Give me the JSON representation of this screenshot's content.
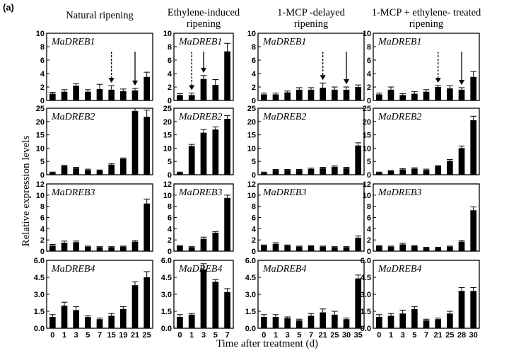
{
  "panel_label": "(a)",
  "chart_data": {
    "type": "bar",
    "ylabel": "Relative expression levels",
    "xlabel": "Time after treatment (d)",
    "columns": [
      {
        "title_lines": [
          "Natural ripening"
        ],
        "x": [
          "0",
          "1",
          "3",
          "5",
          "7",
          "15",
          "19",
          "21",
          "25"
        ]
      },
      {
        "title_lines": [
          "Ethylene-induced",
          "ripening"
        ],
        "x": [
          "0",
          "1",
          "3",
          "5",
          "7"
        ]
      },
      {
        "title_lines": [
          "1-MCP -delayed",
          "ripening"
        ],
        "x": [
          "0",
          "1",
          "3",
          "5",
          "7",
          "21",
          "25",
          "30",
          "35"
        ]
      },
      {
        "title_lines": [
          "1-MCP + ethylene- treated",
          "ripening"
        ],
        "x": [
          "0",
          "1",
          "3",
          "5",
          "7",
          "21",
          "25",
          "28",
          "30"
        ]
      }
    ],
    "rows": [
      {
        "gene": "MaDREB1",
        "ylim": [
          0,
          10
        ],
        "yticks": [
          "0",
          "2",
          "4",
          "6",
          "8",
          "10"
        ],
        "ytick_values": [
          0,
          2,
          4,
          6,
          8,
          10
        ],
        "values": [
          [
            1.0,
            1.3,
            2.2,
            1.3,
            1.7,
            1.6,
            1.4,
            1.5,
            3.5
          ],
          [
            0.8,
            0.8,
            3.2,
            2.3,
            7.3
          ],
          [
            0.9,
            0.9,
            1.2,
            1.6,
            1.6,
            1.9,
            1.6,
            1.6,
            2.0
          ],
          [
            0.9,
            1.6,
            0.8,
            1.0,
            1.3,
            2.0,
            1.8,
            1.6,
            3.5
          ]
        ],
        "errors": [
          [
            0.2,
            0.3,
            0.3,
            0.3,
            0.7,
            0.6,
            0.3,
            0.3,
            0.7
          ],
          [
            0.2,
            0.3,
            0.5,
            0.8,
            1.2
          ],
          [
            0.2,
            0.2,
            0.2,
            0.3,
            0.3,
            0.7,
            0.4,
            0.4,
            0.3
          ],
          [
            0.2,
            0.4,
            0.2,
            0.3,
            0.3,
            0.2,
            0.4,
            0.3,
            0.8
          ]
        ],
        "arrows": [
          [
            {
              "index": 5,
              "style": "dashed"
            },
            {
              "index": 7,
              "style": "solid"
            }
          ],
          [
            {
              "index": 1,
              "style": "dashed"
            },
            {
              "index": 2,
              "style": "solid"
            }
          ],
          [
            {
              "index": 5,
              "style": "dashed"
            },
            {
              "index": 7,
              "style": "solid"
            }
          ],
          [
            {
              "index": 5,
              "style": "dashed"
            },
            {
              "index": 7,
              "style": "solid"
            }
          ]
        ]
      },
      {
        "gene": "MaDREB2",
        "ylim": [
          0,
          25
        ],
        "yticks": [
          "0",
          "5",
          "10",
          "15",
          "20",
          "25"
        ],
        "ytick_values": [
          0,
          5,
          10,
          15,
          20,
          25
        ],
        "values": [
          [
            0.8,
            3.3,
            2.5,
            1.8,
            1.6,
            3.8,
            6.0,
            24.0,
            21.8
          ],
          [
            0.8,
            10.8,
            15.8,
            17.0,
            21.0
          ],
          [
            0.8,
            1.8,
            1.8,
            1.8,
            2.2,
            2.5,
            3.0,
            2.5,
            11.0
          ],
          [
            0.8,
            1.4,
            2.0,
            2.3,
            1.8,
            3.2,
            5.2,
            10.0,
            20.5
          ]
        ],
        "errors": [
          [
            0.2,
            0.3,
            0.3,
            0.3,
            0.2,
            0.4,
            0.3,
            1.5,
            2.5
          ],
          [
            0.2,
            0.6,
            1.2,
            1.0,
            1.2
          ],
          [
            0.2,
            0.2,
            0.2,
            0.2,
            0.3,
            0.3,
            0.3,
            0.3,
            1.0
          ],
          [
            0.2,
            0.2,
            0.3,
            0.3,
            0.3,
            0.3,
            0.5,
            0.8,
            1.5
          ]
        ]
      },
      {
        "gene": "MaDREB3",
        "ylim": [
          0,
          12
        ],
        "yticks": [
          "0",
          "2",
          "4",
          "6",
          "8",
          "10",
          "12"
        ],
        "ytick_values": [
          0,
          2,
          4,
          6,
          8,
          10,
          12
        ],
        "values": [
          [
            1.0,
            1.5,
            1.6,
            0.8,
            0.7,
            0.7,
            0.8,
            1.7,
            8.5
          ],
          [
            0.9,
            0.7,
            2.2,
            3.3,
            9.5
          ],
          [
            1.0,
            1.3,
            1.0,
            0.8,
            0.9,
            0.8,
            0.7,
            0.7,
            2.4
          ],
          [
            0.9,
            0.8,
            1.2,
            0.9,
            0.6,
            0.6,
            0.8,
            1.7,
            7.3
          ]
        ],
        "errors": [
          [
            0.2,
            0.3,
            0.2,
            0.1,
            0.1,
            0.1,
            0.1,
            0.2,
            0.8
          ],
          [
            0.1,
            0.1,
            0.3,
            0.2,
            0.5
          ],
          [
            0.1,
            0.2,
            0.1,
            0.1,
            0.1,
            0.1,
            0.1,
            0.1,
            0.3
          ],
          [
            0.1,
            0.1,
            0.2,
            0.1,
            0.1,
            0.1,
            0.1,
            0.2,
            0.6
          ]
        ]
      },
      {
        "gene": "MaDREB4",
        "ylim": [
          0,
          6
        ],
        "yticks": [
          "0.0",
          "1.5",
          "3.0",
          "4.5",
          "6.0"
        ],
        "ytick_values": [
          0,
          1.5,
          3,
          4.5,
          6
        ],
        "values": [
          [
            1.0,
            2.0,
            1.6,
            1.0,
            0.8,
            1.1,
            1.7,
            3.8,
            4.5
          ],
          [
            1.0,
            1.2,
            5.2,
            4.1,
            3.2
          ],
          [
            1.0,
            1.0,
            0.9,
            0.7,
            1.1,
            1.4,
            1.2,
            0.8,
            4.4
          ],
          [
            1.0,
            1.1,
            1.3,
            1.7,
            0.7,
            0.8,
            1.3,
            3.3,
            3.3
          ]
        ],
        "errors": [
          [
            0.2,
            0.3,
            0.3,
            0.1,
            0.1,
            0.2,
            0.2,
            0.3,
            0.5
          ],
          [
            0.2,
            0.1,
            0.5,
            0.2,
            0.3
          ],
          [
            0.2,
            0.2,
            0.1,
            0.1,
            0.2,
            0.3,
            0.3,
            0.1,
            0.3
          ],
          [
            0.2,
            0.2,
            0.3,
            0.2,
            0.1,
            0.1,
            0.2,
            0.3,
            0.3
          ]
        ]
      }
    ]
  }
}
